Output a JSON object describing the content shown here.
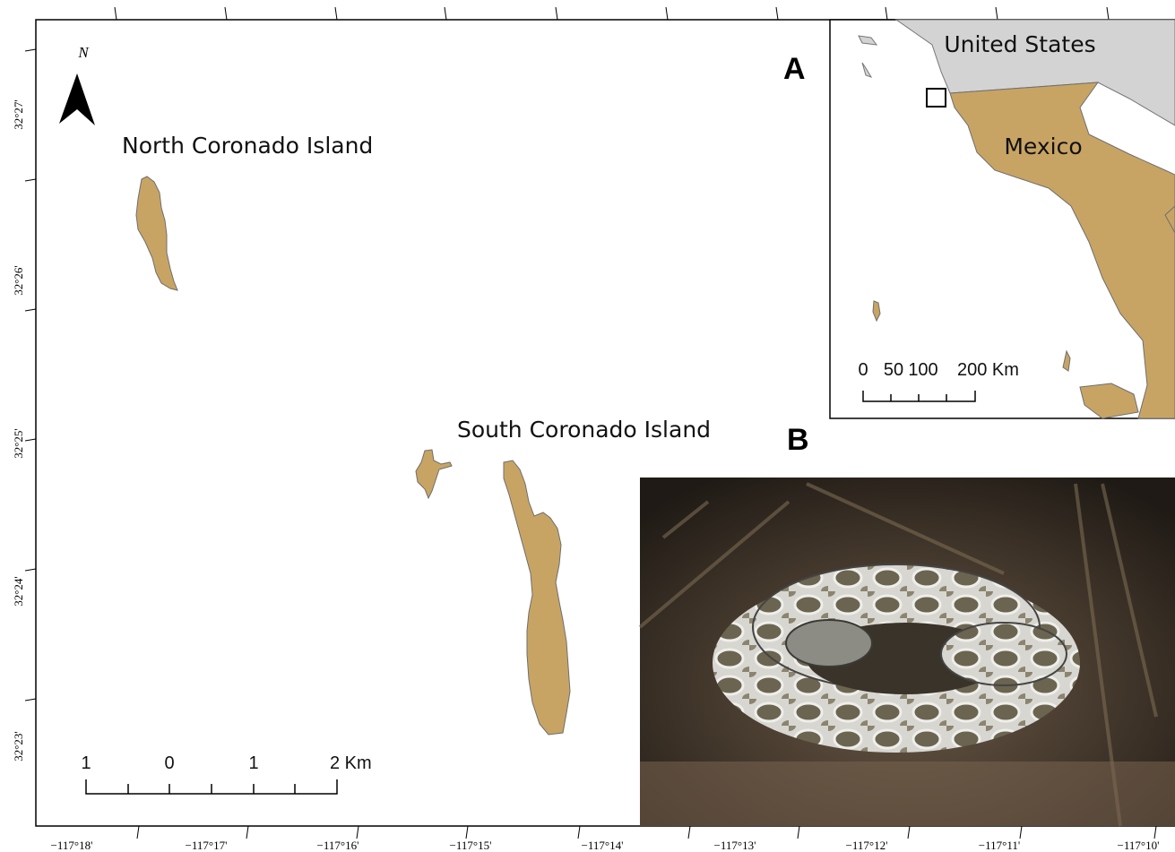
{
  "north_arrow": "N",
  "panel_labels": [
    "A",
    "B"
  ],
  "islands": [
    "North Coronado Island",
    "South Coronado Island"
  ],
  "inset": {
    "countries": [
      "United States",
      "Mexico"
    ],
    "scale_labels": [
      "0",
      "50",
      "100",
      "200 Km"
    ]
  },
  "scale_labels": [
    "1",
    "0",
    "1",
    "2 Km"
  ],
  "latitude_labels": [
    "32°27'",
    "32°26'",
    "32°25'",
    "32°24'",
    "32°23'"
  ],
  "longitude_labels": [
    "−117°18'",
    "−117°17'",
    "−117°16'",
    "−117°15'",
    "−117°14'",
    "−117°13'",
    "−117°12'",
    "−117°11'",
    "−117°10'"
  ]
}
